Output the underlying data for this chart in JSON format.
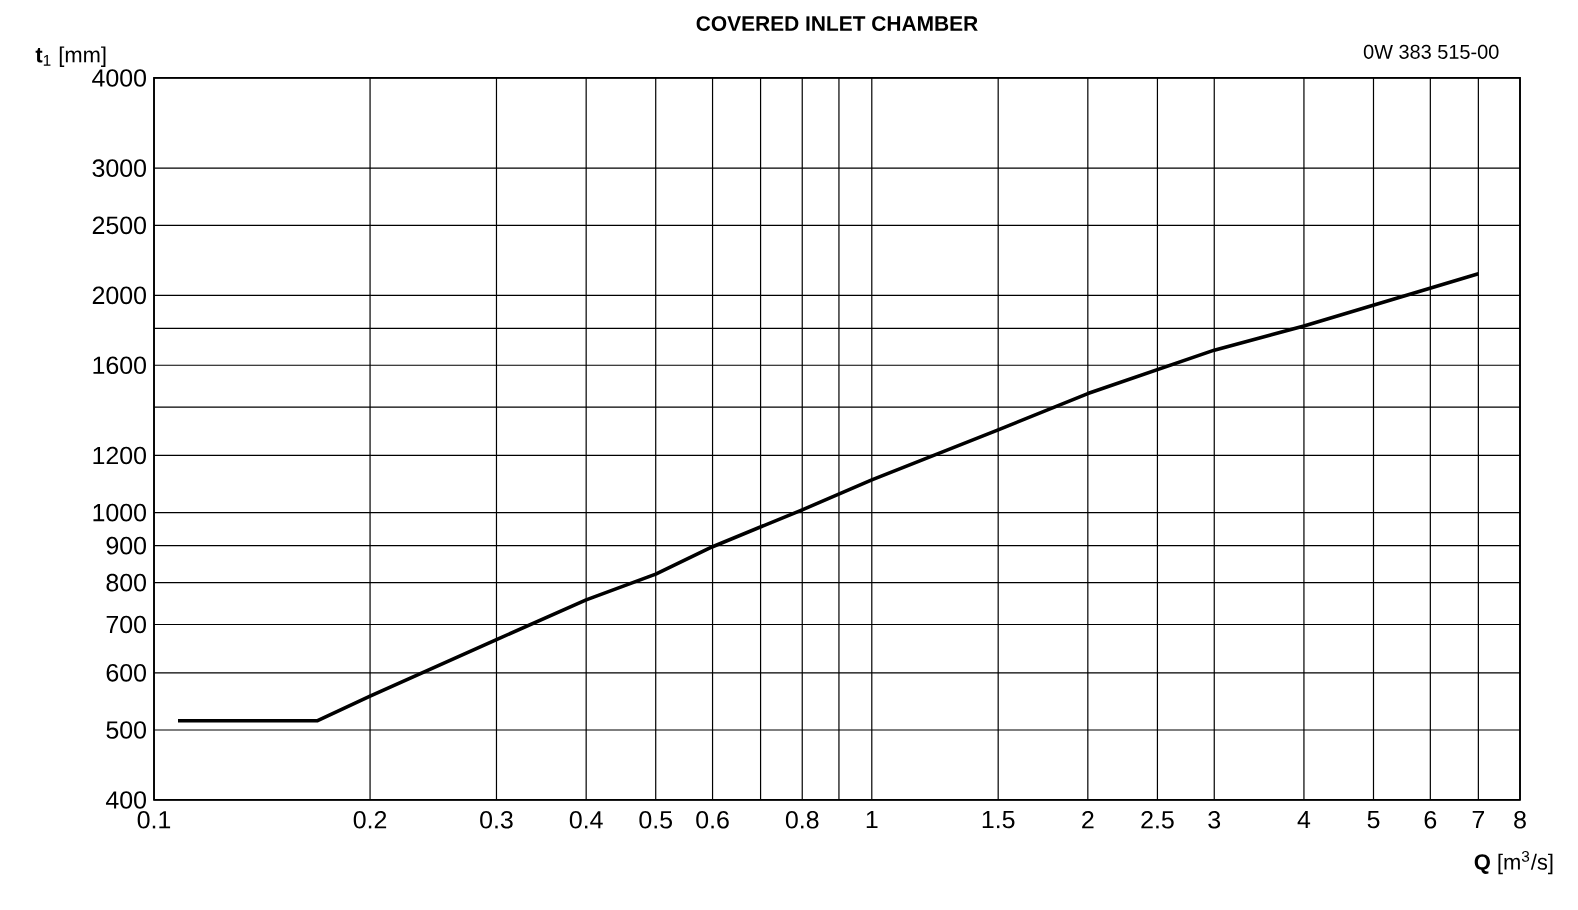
{
  "chart_data": {
    "type": "line",
    "title": "COVERED INLET CHAMBER",
    "annotations": [
      "0W 383 515-00"
    ],
    "xlabel": "**Q** [m$^{3}$/s]",
    "ylabel": "**t**$_{1}$ [mm]",
    "log": "xy",
    "grid": true,
    "marker": "none",
    "line_style": "solid",
    "xlim": [
      0.1,
      8
    ],
    "ylim": [
      400,
      4000
    ],
    "xticks": [
      0.1,
      0.2,
      0.3,
      0.4,
      0.5,
      0.6,
      {
        "value": 0.7,
        "label": null
      },
      0.8,
      {
        "value": 0.9,
        "label": null
      },
      1,
      1.5,
      2,
      2.5,
      3,
      4,
      5,
      6,
      7,
      8
    ],
    "yticks": [
      400,
      500,
      600,
      700,
      800,
      900,
      1000,
      1200,
      {
        "value": 1400,
        "label": null
      },
      1600,
      {
        "value": 1800,
        "label": null
      },
      2000,
      2500,
      3000,
      4000
    ],
    "series": [
      {
        "color": "#000000",
        "x": [
          0.108,
          0.169,
          0.2,
          0.3,
          0.4,
          0.5,
          0.6,
          0.8,
          1,
          1.5,
          2,
          3,
          4,
          7
        ],
        "values": [
          515,
          515,
          557,
          667,
          757,
          822,
          897,
          1009,
          1110,
          1302,
          1462,
          1679,
          1814,
          2142
        ]
      }
    ]
  }
}
